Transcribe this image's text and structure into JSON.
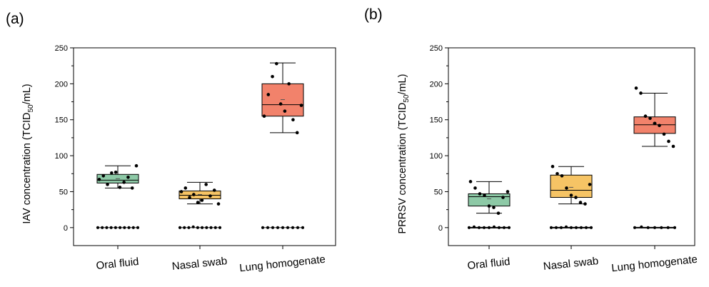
{
  "panel_labels": [
    "(a)",
    "(b)"
  ],
  "chart_data": [
    {
      "type": "box",
      "panel_label": "(a)",
      "ylabel": {
        "prefix": "IAV concentration (TCID",
        "sub": "50",
        "suffix": "/mL)"
      },
      "ylim": [
        -25,
        250
      ],
      "yticks": [
        0,
        50,
        100,
        150,
        200,
        250
      ],
      "categories": [
        "Oral fluid",
        "Nasal swab",
        "Lung homogenate"
      ],
      "colors": [
        "#8dc9a6",
        "#f6c465",
        "#f2826b"
      ],
      "boxes": [
        {
          "whisker_low": 55,
          "q1": 62,
          "median": 66,
          "q3": 74,
          "whisker_high": 86,
          "mean": 68,
          "points": [
            67,
            72,
            60,
            76,
            77,
            56,
            63,
            70,
            55,
            86
          ]
        },
        {
          "whisker_low": 33,
          "q1": 40,
          "median": 45,
          "q3": 51,
          "whisker_high": 63,
          "mean": 46,
          "points": [
            50,
            55,
            42,
            46,
            35,
            38,
            60,
            44,
            52,
            33
          ]
        },
        {
          "whisker_low": 132,
          "q1": 155,
          "median": 171,
          "q3": 200,
          "whisker_high": 229,
          "mean": 178,
          "points": [
            155,
            185,
            210,
            228,
            172,
            162,
            200,
            150,
            132,
            170
          ]
        }
      ],
      "zero_points": [
        [
          0,
          0,
          0,
          0,
          0,
          0,
          0,
          0,
          0,
          0
        ],
        [
          0,
          0,
          0,
          1,
          0,
          0,
          0,
          0,
          0,
          0
        ],
        [
          0,
          0,
          0,
          0,
          0,
          0,
          0,
          0,
          0
        ]
      ],
      "grid": false
    },
    {
      "type": "box",
      "panel_label": "(b)",
      "ylabel": {
        "prefix": "PRRSV concentration (TCID",
        "sub": "50",
        "suffix": "/mL)"
      },
      "ylim": [
        -25,
        250
      ],
      "yticks": [
        0,
        50,
        100,
        150,
        200,
        250
      ],
      "categories": [
        "Oral fluid",
        "Nasal swab",
        "Lung homogenate"
      ],
      "colors": [
        "#8dc9a6",
        "#f6c465",
        "#f2826b"
      ],
      "boxes": [
        {
          "whisker_low": 20,
          "q1": 30,
          "median": 43,
          "q3": 47,
          "whisker_high": 64,
          "mean": 40,
          "points": [
            64,
            55,
            47,
            45,
            30,
            28,
            20,
            42,
            50
          ]
        },
        {
          "whisker_low": 33,
          "q1": 42,
          "median": 52,
          "q3": 73,
          "whisker_high": 85,
          "mean": 56,
          "points": [
            85,
            75,
            72,
            55,
            45,
            42,
            35,
            33,
            60
          ]
        },
        {
          "whisker_low": 113,
          "q1": 131,
          "median": 143,
          "q3": 154,
          "whisker_high": 187,
          "mean": 145,
          "points": [
            194,
            187,
            155,
            152,
            145,
            142,
            130,
            120,
            113
          ]
        }
      ],
      "zero_points": [
        [
          0,
          1,
          0,
          0,
          0,
          1,
          0,
          0,
          0
        ],
        [
          0,
          0,
          0,
          1,
          0,
          0,
          0,
          0,
          0
        ],
        [
          0,
          1,
          0,
          0,
          0,
          0,
          0
        ]
      ],
      "grid": false
    }
  ]
}
